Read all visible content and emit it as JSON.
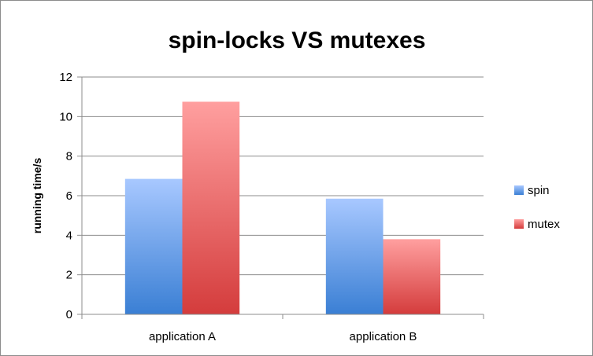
{
  "chart_data": {
    "type": "bar",
    "title": "spin-locks VS mutexes",
    "xlabel": "",
    "ylabel": "running time/s",
    "categories": [
      "application A",
      "application B"
    ],
    "series": [
      {
        "name": "spin",
        "values": [
          6.85,
          5.85
        ],
        "color_top": "#a8c8ff",
        "color_bottom": "#3a7fd4"
      },
      {
        "name": "mutex",
        "values": [
          10.75,
          3.8
        ],
        "color_top": "#ff9f9f",
        "color_bottom": "#d43c3c"
      }
    ],
    "ylim": [
      0,
      12
    ],
    "yticks": [
      0,
      2,
      4,
      6,
      8,
      10,
      12
    ],
    "grid": true,
    "legend_position": "right"
  }
}
